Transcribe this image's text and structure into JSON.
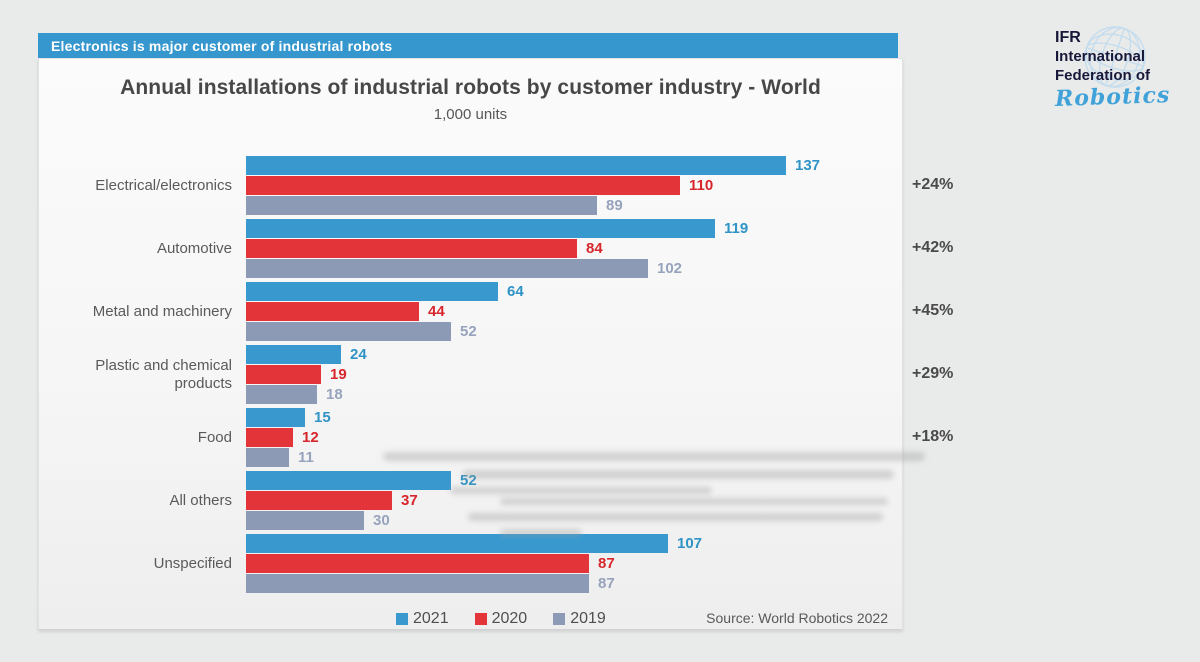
{
  "banner": {
    "text": "Electronics is major customer of industrial robots",
    "color": "#3697ce"
  },
  "header": {
    "title": "Annual installations of industrial robots by customer industry - World",
    "subtitle": "1,000 units"
  },
  "logo": {
    "line1": "IFR",
    "line2": "International",
    "line3": "Federation of",
    "script": "Robotics",
    "globe_color": "#c3dcee"
  },
  "source": {
    "text": "Source: World Robotics 2022"
  },
  "chart_data": {
    "type": "bar",
    "orientation": "horizontal",
    "title": "Annual installations of industrial robots by customer industry - World",
    "unit_label": "1,000 units",
    "legend_position": "bottom",
    "grid": false,
    "xlim": [
      0,
      168
    ],
    "categories": [
      "Electrical/electronics",
      "Automotive",
      "Metal and machinery",
      "Plastic and chemical products",
      "Food",
      "All others",
      "Unspecified"
    ],
    "series": [
      {
        "name": "2021",
        "color": "#3999cf",
        "label_color": "#2f93c6",
        "values": [
          137,
          119,
          64,
          24,
          15,
          52,
          107
        ]
      },
      {
        "name": "2020",
        "color": "#e23439",
        "label_color": "#d7262c",
        "values": [
          110,
          84,
          44,
          19,
          12,
          37,
          87
        ]
      },
      {
        "name": "2019",
        "color": "#8c9ab6",
        "label_color": "#97a3bc",
        "values": [
          89,
          102,
          52,
          18,
          11,
          30,
          87
        ]
      }
    ],
    "growth_labels": [
      "+24%",
      "+42%",
      "+45%",
      "+29%",
      "+18%",
      "",
      ""
    ]
  }
}
